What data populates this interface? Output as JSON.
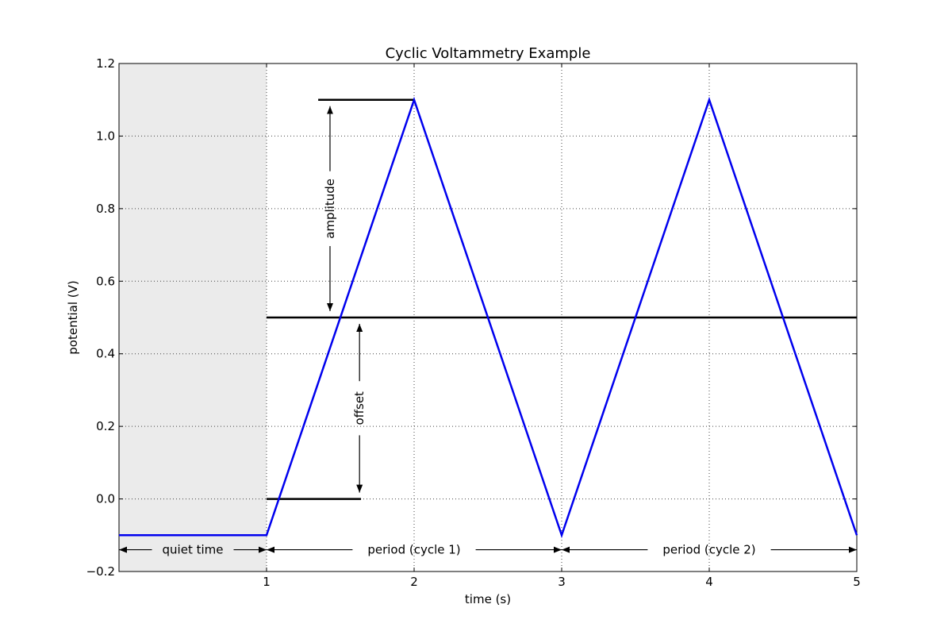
{
  "chart_data": {
    "type": "line",
    "title": "Cyclic Voltammetry Example",
    "xlabel": "time (s)",
    "ylabel": "potential (V)",
    "xlim": [
      0,
      5
    ],
    "ylim": [
      -0.2,
      1.2
    ],
    "grid": true,
    "x_ticks": [
      1,
      2,
      3,
      4,
      5
    ],
    "x_tick_labels": [
      "1",
      "2",
      "3",
      "4",
      "5"
    ],
    "y_ticks": [
      -0.2,
      0.0,
      0.2,
      0.4,
      0.6,
      0.8,
      1.0,
      1.2
    ],
    "y_tick_labels": [
      "−0.2",
      "0.0",
      "0.2",
      "0.4",
      "0.6",
      "0.8",
      "1.0",
      "1.2"
    ],
    "series": [
      {
        "color": "#0000ee",
        "x": [
          0,
          1,
          2,
          3,
          4,
          5
        ],
        "y": [
          -0.1,
          -0.1,
          1.1,
          -0.1,
          1.1,
          -0.1
        ]
      }
    ],
    "shaded_region": {
      "x": [
        0,
        1
      ],
      "color": "#ebebeb"
    },
    "reference_lines": [
      {
        "name": "amplitude-top-line",
        "x": [
          1.35,
          2.0
        ],
        "y": 1.1
      },
      {
        "name": "offset-line",
        "x": [
          1.0,
          5.0
        ],
        "y": 0.5
      },
      {
        "name": "zero-line",
        "x": [
          1.0,
          1.64
        ],
        "y": 0.0
      }
    ],
    "annotations": [
      {
        "name": "amplitude",
        "label": "amplitude",
        "orientation": "vertical",
        "x": 1.43,
        "y_range": [
          0.5,
          1.1
        ]
      },
      {
        "name": "offset",
        "label": "offset",
        "orientation": "vertical",
        "x": 1.63,
        "y_range": [
          0.0,
          0.5
        ]
      },
      {
        "name": "quiet-time",
        "label": "quiet time",
        "orientation": "horizontal",
        "y": -0.14,
        "x_range": [
          0,
          1
        ]
      },
      {
        "name": "period-cycle-1",
        "label": "period (cycle 1)",
        "orientation": "horizontal",
        "y": -0.14,
        "x_range": [
          1,
          3
        ]
      },
      {
        "name": "period-cycle-2",
        "label": "period (cycle 2)",
        "orientation": "horizontal",
        "y": -0.14,
        "x_range": [
          3,
          5
        ]
      }
    ]
  }
}
